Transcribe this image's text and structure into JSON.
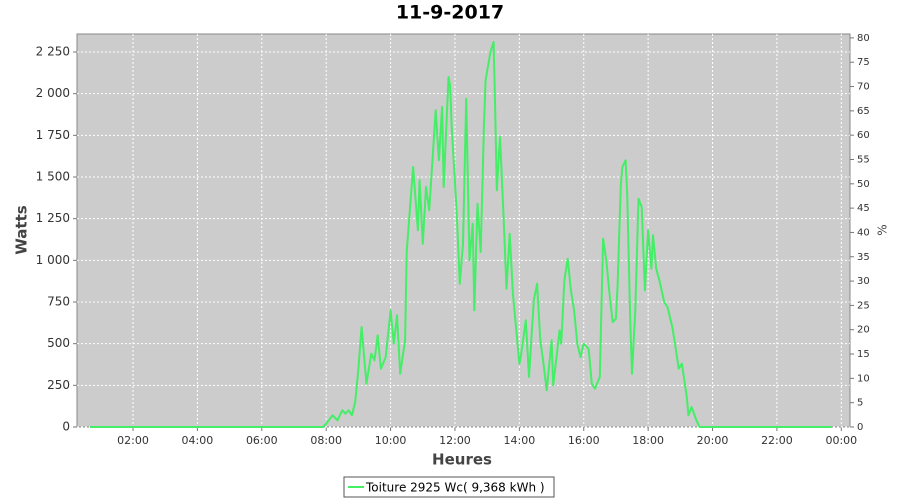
{
  "chart_data": {
    "type": "line",
    "title": "11-9-2017",
    "x_label": "Heures",
    "y_label": "Watts",
    "y2_label": "%",
    "xlim": [
      0.26,
      24.27
    ],
    "xticks": [
      {
        "value": 2,
        "label": "02:00"
      },
      {
        "value": 4,
        "label": "04:00"
      },
      {
        "value": 6,
        "label": "06:00"
      },
      {
        "value": 8,
        "label": "08:00"
      },
      {
        "value": 10,
        "label": "10:00"
      },
      {
        "value": 12,
        "label": "12:00"
      },
      {
        "value": 14,
        "label": "14:00"
      },
      {
        "value": 16,
        "label": "16:00"
      },
      {
        "value": 18,
        "label": "18:00"
      },
      {
        "value": 20,
        "label": "20:00"
      },
      {
        "value": 22,
        "label": "22:00"
      },
      {
        "value": 24,
        "label": "00:00"
      }
    ],
    "ylim": [
      0,
      2358
    ],
    "yticks": [
      0,
      250,
      500,
      750,
      {
        "value": 1000,
        "label": "1 000"
      },
      {
        "value": 1250,
        "label": "1 250"
      },
      {
        "value": 1500,
        "label": "1 500"
      },
      {
        "value": 1750,
        "label": "1 750"
      },
      {
        "value": 2000,
        "label": "2 000"
      },
      {
        "value": 2250,
        "label": "2 250"
      }
    ],
    "y2lim": [
      0,
      80.8
    ],
    "y2ticks": [
      0,
      5,
      10,
      15,
      20,
      25,
      30,
      35,
      40,
      45,
      50,
      55,
      60,
      65,
      70,
      75,
      80
    ],
    "grid": true,
    "legend": "bottom",
    "series": [
      {
        "name": "Toiture 2925 Wc( 9,368 kWh )",
        "color": "#44ee66",
        "x": [
          0.66,
          7.9,
          8.0,
          8.2,
          8.35,
          8.5,
          8.6,
          8.7,
          8.8,
          8.9,
          9.0,
          9.1,
          9.25,
          9.4,
          9.5,
          9.6,
          9.7,
          9.85,
          10.0,
          10.1,
          10.2,
          10.3,
          10.45,
          10.5,
          10.7,
          10.85,
          10.9,
          11.0,
          11.1,
          11.2,
          11.4,
          11.5,
          11.6,
          11.65,
          11.8,
          11.85,
          11.9,
          12.05,
          12.15,
          12.25,
          12.35,
          12.45,
          12.55,
          12.6,
          12.7,
          12.8,
          12.9,
          12.95,
          13.1,
          13.2,
          13.25,
          13.3,
          13.4,
          13.5,
          13.6,
          13.7,
          13.8,
          14.0,
          14.05,
          14.2,
          14.3,
          14.45,
          14.55,
          14.65,
          14.75,
          14.85,
          15.0,
          15.05,
          15.25,
          15.3,
          15.4,
          15.5,
          15.6,
          15.7,
          15.8,
          15.9,
          16.0,
          16.15,
          16.25,
          16.35,
          16.5,
          16.6,
          16.7,
          16.8,
          16.9,
          17.0,
          17.05,
          17.15,
          17.2,
          17.3,
          17.35,
          17.45,
          17.5,
          17.6,
          17.7,
          17.8,
          17.9,
          18.0,
          18.1,
          18.15,
          18.25,
          18.35,
          18.5,
          18.6,
          18.75,
          18.85,
          18.95,
          19.05,
          19.2,
          19.25,
          19.35,
          19.5,
          19.6,
          23.7
        ],
        "values": [
          0,
          0,
          20,
          70,
          40,
          100,
          80,
          100,
          70,
          150,
          350,
          600,
          260,
          440,
          400,
          550,
          350,
          420,
          700,
          500,
          670,
          320,
          520,
          1050,
          1560,
          1180,
          1480,
          1100,
          1440,
          1300,
          1900,
          1600,
          1920,
          1440,
          2100,
          2050,
          1800,
          1300,
          860,
          1100,
          1970,
          1000,
          1220,
          700,
          1340,
          1050,
          1800,
          2080,
          2250,
          2310,
          1900,
          1420,
          1740,
          1300,
          830,
          1160,
          800,
          380,
          430,
          640,
          300,
          760,
          860,
          520,
          380,
          220,
          520,
          250,
          580,
          500,
          880,
          1010,
          820,
          700,
          500,
          420,
          500,
          470,
          260,
          230,
          300,
          1130,
          1000,
          800,
          630,
          650,
          850,
          1450,
          1560,
          1600,
          1400,
          600,
          320,
          700,
          1370,
          1320,
          820,
          1180,
          950,
          1150,
          950,
          880,
          750,
          720,
          600,
          480,
          350,
          380,
          180,
          70,
          120,
          40,
          0,
          0
        ]
      }
    ]
  }
}
